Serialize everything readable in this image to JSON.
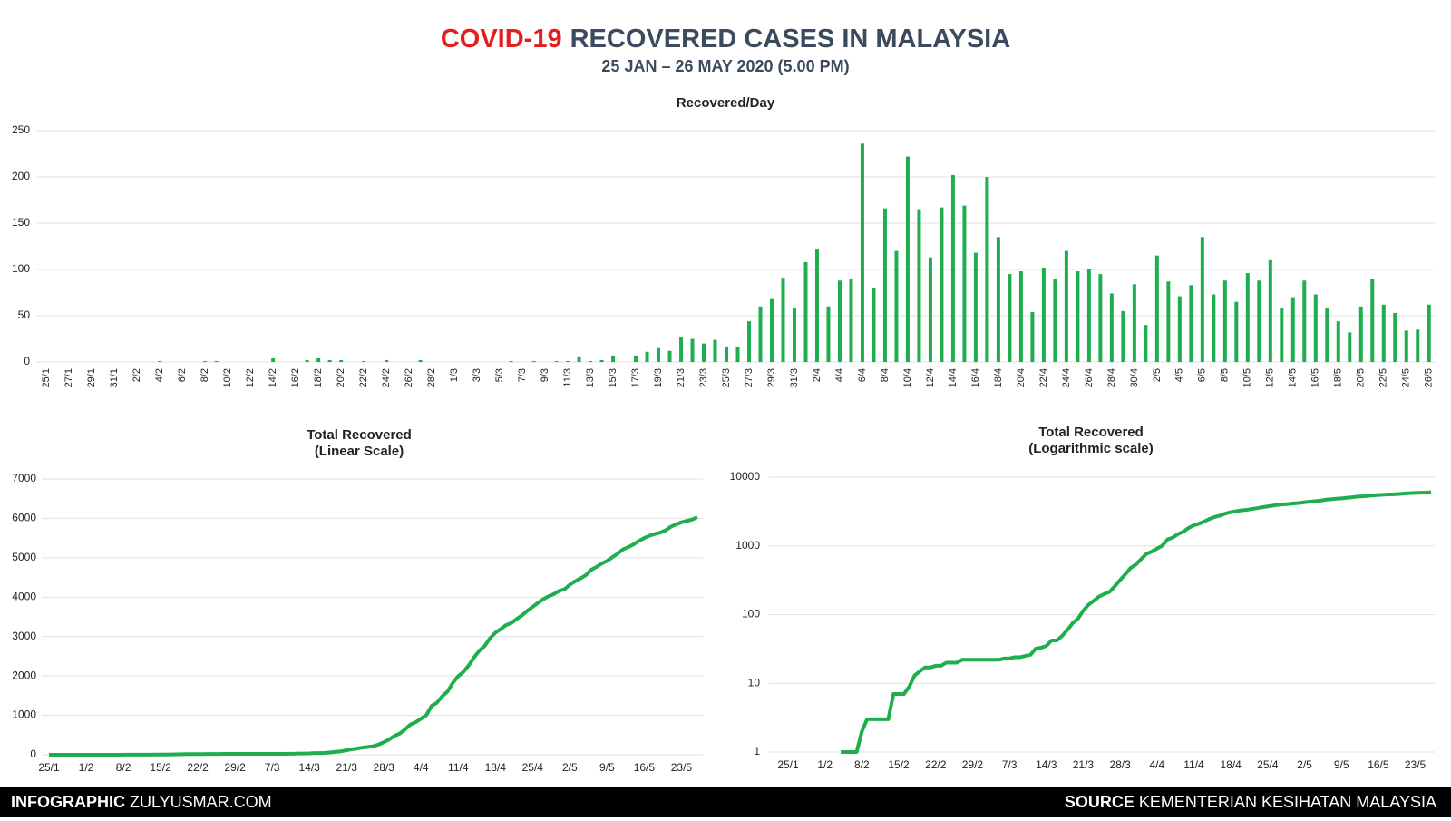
{
  "header": {
    "title_highlight": "COVID-19",
    "title": "RECOVERED CASES IN MALAYSIA",
    "subtitle": "25 JAN – 26 MAY 2020 (5.00 PM)"
  },
  "footer": {
    "left_bold": "INFOGRAPHIC",
    "left": "ZULYUSMAR.COM",
    "right_bold": "SOURCE",
    "right": "KEMENTERIAN KESIHATAN MALAYSIA"
  },
  "chart_data": [
    {
      "type": "bar",
      "title": "Recovered/Day",
      "color": "#1eae4e",
      "grid": true,
      "ylim": [
        0,
        250
      ],
      "yticks": [
        0,
        50,
        100,
        150,
        200,
        250
      ],
      "categories": [
        "25/1",
        null,
        "27/1",
        null,
        "29/1",
        null,
        "31/1",
        null,
        "2/2",
        null,
        "4/2",
        null,
        "6/2",
        null,
        "8/2",
        null,
        "10/2",
        null,
        "12/2",
        null,
        "14/2",
        null,
        "16/2",
        null,
        "18/2",
        null,
        "20/2",
        null,
        "22/2",
        null,
        "24/2",
        null,
        "26/2",
        null,
        "28/2",
        null,
        "1/3",
        null,
        "3/3",
        null,
        "5/3",
        null,
        "7/3",
        null,
        "9/3",
        null,
        "11/3",
        null,
        "13/3",
        null,
        "15/3",
        null,
        "17/3",
        null,
        "19/3",
        null,
        "21/3",
        null,
        "23/3",
        null,
        "25/3",
        null,
        "27/3",
        null,
        "29/3",
        null,
        "31/3",
        null,
        "2/4",
        null,
        "4/4",
        null,
        "6/4",
        null,
        "8/4",
        null,
        "10/4",
        null,
        "12/4",
        null,
        "14/4",
        null,
        "16/4",
        null,
        "18/4",
        null,
        "20/4",
        null,
        "22/4",
        null,
        "24/4",
        null,
        "26/4",
        null,
        "28/4",
        null,
        "30/4",
        null,
        "2/5",
        null,
        "4/5",
        null,
        "6/5",
        null,
        "8/5",
        null,
        "10/5",
        null,
        "12/5",
        null,
        "14/5",
        null,
        "16/5",
        null,
        "18/5",
        null,
        "20/5",
        null,
        "22/5",
        null,
        "24/5",
        null,
        "26/5"
      ],
      "values": [
        0,
        0,
        0,
        0,
        0,
        0,
        0,
        0,
        0,
        0,
        1,
        0,
        0,
        0,
        1,
        1,
        0,
        0,
        0,
        0,
        4,
        0,
        0,
        2,
        4,
        2,
        2,
        0,
        1,
        0,
        2,
        0,
        0,
        2,
        0,
        0,
        0,
        0,
        0,
        0,
        0,
        1,
        0,
        1,
        0,
        1,
        1,
        6,
        1,
        2,
        7,
        0,
        7,
        11,
        15,
        12,
        27,
        25,
        20,
        24,
        16,
        16,
        44,
        60,
        68,
        91,
        58,
        108,
        122,
        60,
        88,
        90,
        236,
        80,
        166,
        120,
        222,
        165,
        113,
        167,
        202,
        169,
        118,
        200,
        135,
        95,
        98,
        54,
        102,
        90,
        120,
        98,
        100,
        95,
        74,
        55,
        84,
        40,
        115,
        87,
        71,
        83,
        135,
        73,
        88,
        65,
        96,
        88,
        110,
        58,
        70,
        88,
        73,
        58,
        44,
        32,
        60,
        90,
        62,
        53,
        34,
        35,
        62
      ]
    },
    {
      "type": "line",
      "title": "Total Recovered",
      "subtitle": "(Linear Scale)",
      "color": "#1eae4e",
      "grid": true,
      "ylim": [
        0,
        7000
      ],
      "yticks": [
        0,
        1000,
        2000,
        3000,
        4000,
        5000,
        6000,
        7000
      ],
      "categories": [
        "25/1",
        null,
        null,
        null,
        null,
        null,
        null,
        "1/2",
        null,
        null,
        null,
        null,
        null,
        null,
        "8/2",
        null,
        null,
        null,
        null,
        null,
        null,
        "15/2",
        null,
        null,
        null,
        null,
        null,
        null,
        "22/2",
        null,
        null,
        null,
        null,
        null,
        null,
        "29/2",
        null,
        null,
        null,
        null,
        null,
        null,
        "7/3",
        null,
        null,
        null,
        null,
        null,
        null,
        "14/3",
        null,
        null,
        null,
        null,
        null,
        null,
        "21/3",
        null,
        null,
        null,
        null,
        null,
        null,
        "28/3",
        null,
        null,
        null,
        null,
        null,
        null,
        "4/4",
        null,
        null,
        null,
        null,
        null,
        null,
        "11/4",
        null,
        null,
        null,
        null,
        null,
        null,
        "18/4",
        null,
        null,
        null,
        null,
        null,
        null,
        "25/4",
        null,
        null,
        null,
        null,
        null,
        null,
        "2/5",
        null,
        null,
        null,
        null,
        null,
        null,
        "9/5",
        null,
        null,
        null,
        null,
        null,
        null,
        "16/5",
        null,
        null,
        null,
        null,
        null,
        null,
        "23/5",
        null,
        null,
        null
      ],
      "values": [
        0,
        0,
        0,
        0,
        0,
        0,
        0,
        0,
        0,
        0,
        1,
        1,
        1,
        1,
        2,
        3,
        3,
        3,
        3,
        3,
        7,
        7,
        7,
        9,
        13,
        15,
        17,
        17,
        18,
        18,
        20,
        20,
        20,
        22,
        22,
        22,
        22,
        22,
        22,
        22,
        22,
        23,
        23,
        24,
        24,
        25,
        26,
        32,
        33,
        35,
        42,
        42,
        49,
        60,
        75,
        87,
        114,
        139,
        159,
        183,
        199,
        215,
        259,
        319,
        387,
        478,
        536,
        644,
        766,
        826,
        914,
        1004,
        1240,
        1320,
        1486,
        1606,
        1828,
        1993,
        2106,
        2273,
        2475,
        2644,
        2762,
        2962,
        3097,
        3192,
        3290,
        3344,
        3446,
        3536,
        3656,
        3754,
        3854,
        3949,
        4023,
        4078,
        4162,
        4202,
        4317,
        4404,
        4475,
        4558,
        4693,
        4766,
        4854,
        4919,
        5015,
        5103,
        5213,
        5271,
        5341,
        5429,
        5502,
        5560,
        5604,
        5636,
        5696,
        5786,
        5848,
        5901,
        5935,
        5970,
        6032
      ]
    },
    {
      "type": "line",
      "title": "Total Recovered",
      "subtitle": "(Logarithmic scale)",
      "color": "#1eae4e",
      "grid": true,
      "log": true,
      "ylim": [
        1,
        10000
      ],
      "yticks": [
        1,
        10,
        100,
        1000,
        10000
      ],
      "categories": [
        "25/1",
        null,
        null,
        null,
        null,
        null,
        null,
        "1/2",
        null,
        null,
        null,
        null,
        null,
        null,
        "8/2",
        null,
        null,
        null,
        null,
        null,
        null,
        "15/2",
        null,
        null,
        null,
        null,
        null,
        null,
        "22/2",
        null,
        null,
        null,
        null,
        null,
        null,
        "29/2",
        null,
        null,
        null,
        null,
        null,
        null,
        "7/3",
        null,
        null,
        null,
        null,
        null,
        null,
        "14/3",
        null,
        null,
        null,
        null,
        null,
        null,
        "21/3",
        null,
        null,
        null,
        null,
        null,
        null,
        "28/3",
        null,
        null,
        null,
        null,
        null,
        null,
        "4/4",
        null,
        null,
        null,
        null,
        null,
        null,
        "11/4",
        null,
        null,
        null,
        null,
        null,
        null,
        "18/4",
        null,
        null,
        null,
        null,
        null,
        null,
        "25/4",
        null,
        null,
        null,
        null,
        null,
        null,
        "2/5",
        null,
        null,
        null,
        null,
        null,
        null,
        "9/5",
        null,
        null,
        null,
        null,
        null,
        null,
        "16/5",
        null,
        null,
        null,
        null,
        null,
        null,
        "23/5",
        null,
        null,
        null
      ],
      "values": [
        null,
        null,
        null,
        null,
        null,
        null,
        null,
        null,
        null,
        null,
        1,
        1,
        1,
        1,
        2,
        3,
        3,
        3,
        3,
        3,
        7,
        7,
        7,
        9,
        13,
        15,
        17,
        17,
        18,
        18,
        20,
        20,
        20,
        22,
        22,
        22,
        22,
        22,
        22,
        22,
        22,
        23,
        23,
        24,
        24,
        25,
        26,
        32,
        33,
        35,
        42,
        42,
        49,
        60,
        75,
        87,
        114,
        139,
        159,
        183,
        199,
        215,
        259,
        319,
        387,
        478,
        536,
        644,
        766,
        826,
        914,
        1004,
        1240,
        1320,
        1486,
        1606,
        1828,
        1993,
        2106,
        2273,
        2475,
        2644,
        2762,
        2962,
        3097,
        3192,
        3290,
        3344,
        3446,
        3536,
        3656,
        3754,
        3854,
        3949,
        4023,
        4078,
        4162,
        4202,
        4317,
        4404,
        4475,
        4558,
        4693,
        4766,
        4854,
        4919,
        5015,
        5103,
        5213,
        5271,
        5341,
        5429,
        5502,
        5560,
        5604,
        5636,
        5696,
        5786,
        5848,
        5901,
        5935,
        5970,
        6032
      ]
    }
  ]
}
